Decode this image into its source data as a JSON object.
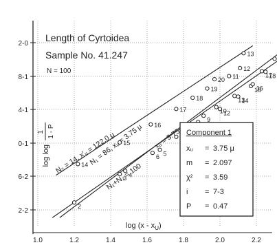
{
  "chart_data": {
    "type": "line",
    "title": "Length of Cyrtoidea",
    "subtitle": "Sample No. 41.247",
    "n_label": "N = 100",
    "xlabel": "log (x - x",
    "xlabel_sub": "U",
    "xlabel_close": ")",
    "ylabel_main": "log log",
    "ylabel_frac_num": "1",
    "ylabel_frac_den": "1 - P",
    "xlim": [
      1.0,
      2.4
    ],
    "x_ticks": [
      "1.0",
      "1.2",
      "1.4",
      "1.6",
      "1.8",
      "2.0",
      "2.2"
    ],
    "y_ticks": [
      "2-0",
      "8-1",
      "4-1",
      "0-1",
      "6-2",
      "2-2"
    ],
    "grid": true,
    "series": [
      {
        "name": "N2 = 14, xU = 122.0 μ",
        "line_label": "N₂ = 14, x'ᵤ = 122.0 μ",
        "points": [
          {
            "label": "14",
            "x": 1.22,
            "y": 1.28
          },
          {
            "label": "15",
            "x": 1.45,
            "y": 1.98
          },
          {
            "label": "16",
            "x": 1.62,
            "y": 2.56
          },
          {
            "label": "17",
            "x": 1.76,
            "y": 3.06
          },
          {
            "label": "18",
            "x": 1.85,
            "y": 3.42
          },
          {
            "label": "19",
            "x": 1.93,
            "y": 3.72
          },
          {
            "label": "20",
            "x": 1.97,
            "y": 4.02
          },
          {
            "label": "11",
            "x": 2.05,
            "y": 4.12
          },
          {
            "label": "12",
            "x": 2.11,
            "y": 4.38
          },
          {
            "label": "13",
            "x": 2.13,
            "y": 4.86
          }
        ]
      },
      {
        "name": "N1 = 86, xU = 3.75 μ",
        "line_label": "N₁ = 86, xᵤ = 3.75 μ",
        "points": [
          {
            "label": "3",
            "x": 1.45,
            "y": 0.96
          },
          {
            "label": "5",
            "x": 1.67,
            "y": 1.74
          },
          {
            "label": "7",
            "x": 1.8,
            "y": 2.36
          },
          {
            "label": "9",
            "x": 1.91,
            "y": 2.84
          },
          {
            "label": "10",
            "x": 1.98,
            "y": 3.12
          },
          {
            "label": "13",
            "x": 2.08,
            "y": 3.48
          },
          {
            "label": "15",
            "x": 2.17,
            "y": 3.8
          },
          {
            "label": "17",
            "x": 2.23,
            "y": 4.28
          },
          {
            "label": "19",
            "x": 2.3,
            "y": 4.68
          }
        ]
      },
      {
        "name": "N1 + N2 = 100, xU = 3.75 μ",
        "line_label": "N₁+N₂ = 100",
        "line_label_2": "xᵤ = 3.75 μ",
        "points": [
          {
            "label": "2",
            "x": 1.2,
            "y": 0.04
          },
          {
            "label": "4",
            "x": 1.48,
            "y": 1.06
          },
          {
            "label": "6",
            "x": 1.63,
            "y": 1.64
          },
          {
            "label": "8",
            "x": 1.76,
            "y": 2.16
          },
          {
            "label": "10",
            "x": 1.88,
            "y": 2.64
          },
          {
            "label": "12",
            "x": 2.0,
            "y": 3.06
          },
          {
            "label": "14",
            "x": 2.1,
            "y": 3.46
          },
          {
            "label": "16",
            "x": 2.18,
            "y": 3.86
          },
          {
            "label": "18",
            "x": 2.25,
            "y": 4.26
          },
          {
            "label": "20",
            "x": 2.34,
            "y": 4.72
          }
        ]
      }
    ],
    "box": {
      "title": "Component 1",
      "lines": [
        {
          "key": "xᵤ",
          "value": "3.75 μ"
        },
        {
          "key": "m",
          "value": "2.097"
        },
        {
          "key": "χ²",
          "value": "3.59"
        },
        {
          "key": "i",
          "value": "7-3"
        },
        {
          "key": "P",
          "value": "0.47"
        }
      ]
    },
    "colors": {
      "ink": "#222222",
      "paper": "#ffffff"
    }
  }
}
